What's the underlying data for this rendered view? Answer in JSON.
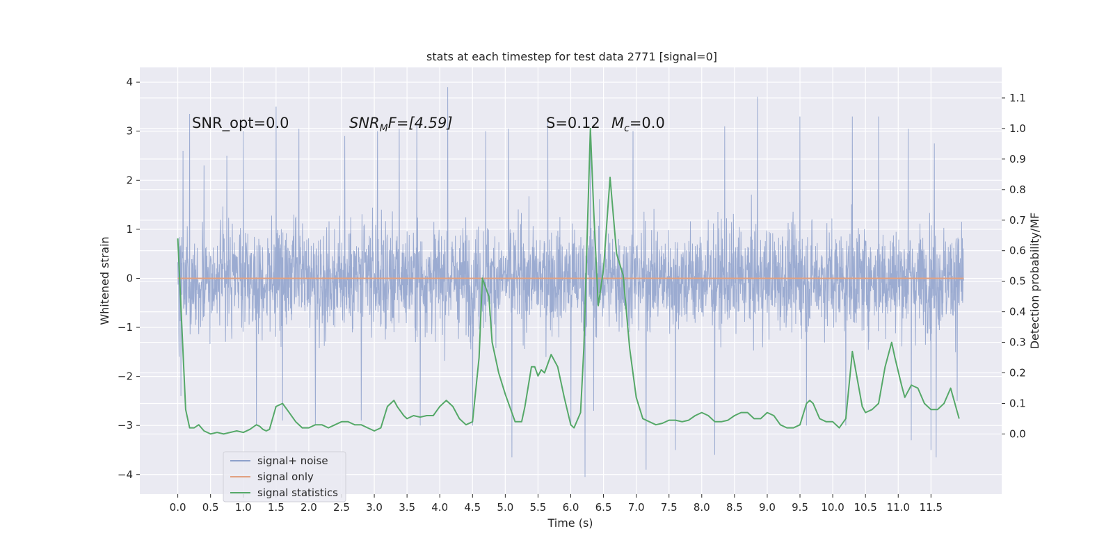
{
  "chart_data": {
    "type": "line",
    "title": "stats at each timestep for test data 2771 [signal=0]",
    "xlabel": "Time (s)",
    "ylabel_left": "Whitened strain",
    "ylabel_right": "Detection probability/MF",
    "xlim": [
      -0.58,
      12.58
    ],
    "ylim_left": [
      -4.4,
      4.3
    ],
    "ylim_right": [
      -0.197,
      1.2
    ],
    "x_ticks": [
      "0.0",
      "0.5",
      "1.0",
      "1.5",
      "2.0",
      "2.5",
      "3.0",
      "3.5",
      "4.0",
      "4.5",
      "5.0",
      "5.5",
      "6.0",
      "6.5",
      "7.0",
      "7.5",
      "8.0",
      "8.5",
      "9.0",
      "9.5",
      "10.0",
      "10.5",
      "11.0",
      "11.5"
    ],
    "y_left_ticks": [
      "4",
      "3",
      "2",
      "1",
      "0",
      "−1",
      "−2",
      "−3",
      "−4"
    ],
    "y_right_ticks": [
      "1.1",
      "1.0",
      "0.9",
      "0.8",
      "0.7",
      "0.6",
      "0.5",
      "0.4",
      "0.3",
      "0.2",
      "0.1",
      "0.0"
    ],
    "grid": true,
    "legend_position": "lower-left",
    "colors": {
      "background": "#eaeaf2",
      "grid": "#ffffff",
      "noise": "#8da0cb",
      "signal_only": "#e1a080",
      "statistics": "#55a868"
    },
    "annotations": {
      "snr_opt": "SNR_opt=0.0",
      "snr_mf": "SNR",
      "snr_mf_sub": "M",
      "snr_mf_rest": "F=[4.59]",
      "s_stat": "S=0.12",
      "mc_label": "M",
      "mc_sub": "c",
      "mc_rest": "=0.0"
    },
    "series": [
      {
        "name": "signal+ noise",
        "axis": "left",
        "x_range": [
          0.0,
          12.0
        ],
        "envelope_typical": [
          -1.4,
          1.2
        ],
        "peaks": [
          [
            0.02,
            2.5
          ],
          [
            0.08,
            2.6
          ],
          [
            0.18,
            3.35
          ],
          [
            0.4,
            2.3
          ],
          [
            0.75,
            2.5
          ],
          [
            1.0,
            3.0
          ],
          [
            1.5,
            3.5
          ],
          [
            1.85,
            3.05
          ],
          [
            2.55,
            2.9
          ],
          [
            3.05,
            3.0
          ],
          [
            3.38,
            3.05
          ],
          [
            3.65,
            3.2
          ],
          [
            4.12,
            3.9
          ],
          [
            4.7,
            3.0
          ],
          [
            5.05,
            3.05
          ],
          [
            5.65,
            3.2
          ],
          [
            6.3,
            3.0
          ],
          [
            6.95,
            3.0
          ],
          [
            7.6,
            3.05
          ],
          [
            8.35,
            3.1
          ],
          [
            8.85,
            3.7
          ],
          [
            9.5,
            3.3
          ],
          [
            10.3,
            3.3
          ],
          [
            10.7,
            3.3
          ],
          [
            11.15,
            3.05
          ],
          [
            11.55,
            2.75
          ]
        ],
        "troughs": [
          [
            0.02,
            -1.6
          ],
          [
            0.05,
            -2.4
          ],
          [
            1.2,
            -3.0
          ],
          [
            1.6,
            -2.9
          ],
          [
            2.1,
            -3.0
          ],
          [
            2.8,
            -2.9
          ],
          [
            3.7,
            -3.0
          ],
          [
            4.5,
            -3.0
          ],
          [
            5.1,
            -3.65
          ],
          [
            6.0,
            -3.0
          ],
          [
            6.22,
            -4.05
          ],
          [
            6.35,
            -2.7
          ],
          [
            7.15,
            -3.9
          ],
          [
            7.6,
            -3.5
          ],
          [
            8.2,
            -3.6
          ],
          [
            9.6,
            -3.0
          ],
          [
            10.2,
            -3.0
          ],
          [
            11.2,
            -3.3
          ],
          [
            11.5,
            -3.5
          ],
          [
            11.58,
            -3.65
          ],
          [
            11.9,
            -2.5
          ]
        ]
      },
      {
        "name": "signal only",
        "axis": "left",
        "x": [
          0.0,
          12.0
        ],
        "y": [
          0.0,
          0.0
        ]
      },
      {
        "name": "signal statistics",
        "axis": "right",
        "x": [
          0.0,
          0.12,
          0.18,
          0.25,
          0.32,
          0.4,
          0.5,
          0.6,
          0.7,
          0.8,
          0.9,
          1.0,
          1.1,
          1.2,
          1.25,
          1.3,
          1.35,
          1.4,
          1.5,
          1.6,
          1.7,
          1.8,
          1.9,
          2.0,
          2.1,
          2.2,
          2.3,
          2.4,
          2.5,
          2.6,
          2.7,
          2.8,
          2.9,
          3.0,
          3.1,
          3.2,
          3.3,
          3.35,
          3.45,
          3.5,
          3.6,
          3.7,
          3.8,
          3.9,
          4.0,
          4.1,
          4.2,
          4.3,
          4.4,
          4.5,
          4.6,
          4.65,
          4.75,
          4.8,
          4.9,
          5.0,
          5.1,
          5.15,
          5.25,
          5.3,
          5.4,
          5.45,
          5.5,
          5.55,
          5.6,
          5.7,
          5.8,
          5.9,
          6.0,
          6.05,
          6.15,
          6.2,
          6.3,
          6.35,
          6.42,
          6.5,
          6.6,
          6.7,
          6.8,
          6.9,
          7.0,
          7.1,
          7.2,
          7.3,
          7.4,
          7.5,
          7.6,
          7.7,
          7.8,
          7.9,
          8.0,
          8.1,
          8.2,
          8.3,
          8.4,
          8.5,
          8.6,
          8.7,
          8.8,
          8.9,
          9.0,
          9.1,
          9.2,
          9.3,
          9.4,
          9.5,
          9.6,
          9.65,
          9.7,
          9.8,
          9.9,
          10.0,
          10.1,
          10.2,
          10.3,
          10.35,
          10.45,
          10.5,
          10.6,
          10.7,
          10.8,
          10.9,
          10.95,
          11.05,
          11.1,
          11.2,
          11.3,
          11.4,
          11.5,
          11.6,
          11.7,
          11.8,
          11.93
        ],
        "y": [
          0.64,
          0.08,
          0.02,
          0.02,
          0.03,
          0.01,
          0.0,
          0.005,
          0.0,
          0.005,
          0.01,
          0.005,
          0.015,
          0.03,
          0.025,
          0.015,
          0.01,
          0.015,
          0.09,
          0.1,
          0.07,
          0.04,
          0.02,
          0.02,
          0.03,
          0.03,
          0.02,
          0.03,
          0.04,
          0.04,
          0.03,
          0.03,
          0.02,
          0.01,
          0.02,
          0.09,
          0.11,
          0.09,
          0.06,
          0.05,
          0.06,
          0.055,
          0.06,
          0.06,
          0.09,
          0.11,
          0.09,
          0.05,
          0.03,
          0.04,
          0.25,
          0.51,
          0.45,
          0.3,
          0.2,
          0.13,
          0.07,
          0.04,
          0.04,
          0.09,
          0.22,
          0.22,
          0.19,
          0.21,
          0.2,
          0.26,
          0.22,
          0.12,
          0.03,
          0.02,
          0.07,
          0.28,
          1.0,
          0.73,
          0.42,
          0.54,
          0.84,
          0.59,
          0.52,
          0.28,
          0.12,
          0.05,
          0.04,
          0.03,
          0.035,
          0.045,
          0.045,
          0.04,
          0.045,
          0.06,
          0.07,
          0.06,
          0.04,
          0.04,
          0.045,
          0.06,
          0.07,
          0.07,
          0.05,
          0.05,
          0.07,
          0.06,
          0.03,
          0.02,
          0.02,
          0.03,
          0.1,
          0.11,
          0.1,
          0.05,
          0.04,
          0.04,
          0.02,
          0.05,
          0.27,
          0.21,
          0.09,
          0.07,
          0.08,
          0.1,
          0.22,
          0.3,
          0.25,
          0.16,
          0.12,
          0.16,
          0.15,
          0.1,
          0.08,
          0.08,
          0.1,
          0.15,
          0.05
        ]
      }
    ]
  }
}
